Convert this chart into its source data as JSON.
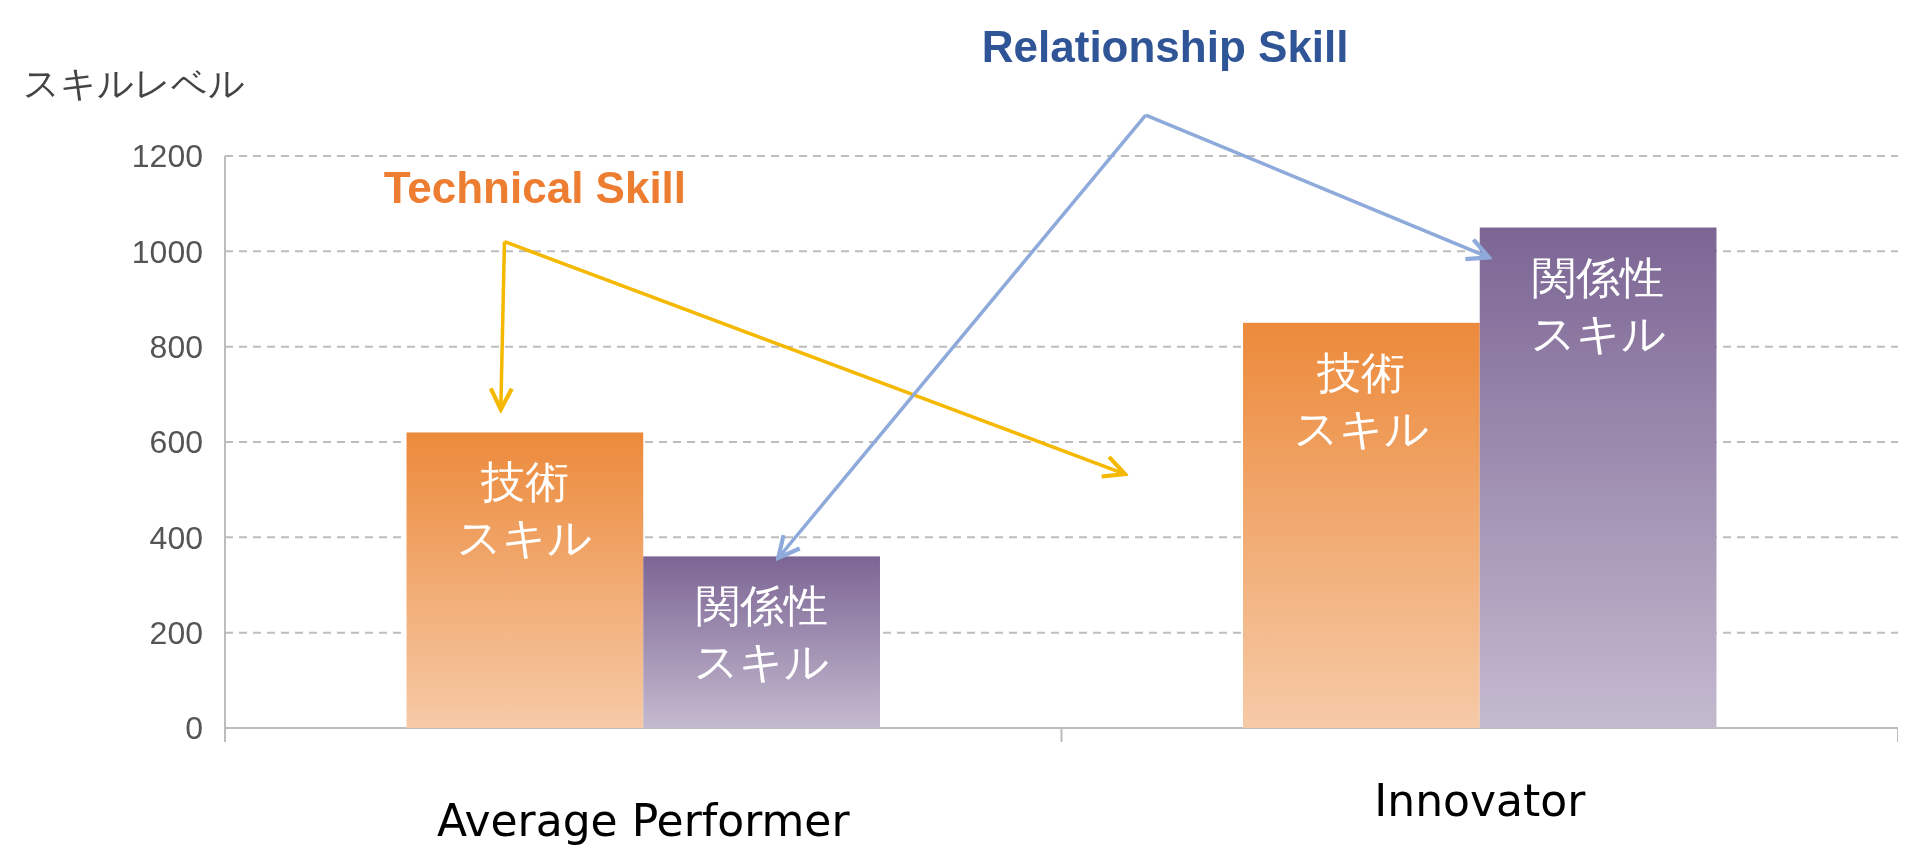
{
  "chart_data": {
    "type": "bar",
    "ylabel": "スキルレベル",
    "categories": [
      "Average Performer",
      "Innovator"
    ],
    "series": [
      {
        "name": "技術スキル",
        "color": "#ec8a3b",
        "values": [
          620,
          850
        ]
      },
      {
        "name": "関係性スキル",
        "color": "#7c6594",
        "values": [
          360,
          1050
        ]
      }
    ],
    "ylim": [
      0,
      1200
    ],
    "yticks": [
      0,
      200,
      400,
      600,
      800,
      1000,
      1200
    ],
    "grid": "y",
    "annotations": [
      "Technical Skill",
      "Relationship Skill"
    ]
  }
}
